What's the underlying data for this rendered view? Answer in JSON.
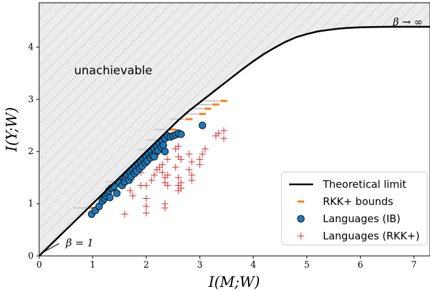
{
  "chart_data": {
    "type": "scatter",
    "xlabel": "I(M;W)",
    "ylabel": "I(Y;W)",
    "xlim": [
      0,
      7.3
    ],
    "ylim": [
      0,
      4.85
    ],
    "xticks": [
      "0",
      "1",
      "2",
      "3",
      "4",
      "5",
      "6",
      "7"
    ],
    "yticks": [
      "0",
      "1",
      "2",
      "3",
      "4"
    ],
    "grid": false,
    "legend_position": "lower-right",
    "annotations": {
      "region_label": "unachievable",
      "beta_one": "β = 1",
      "beta_inf": "β → ∞"
    },
    "colors": {
      "limit": "#000000",
      "bounds": "#ff7f0e",
      "bounds_gap": "#c8c8c8",
      "ib_fill": "#1f77b4",
      "rkk": "#d62728",
      "unachievable_fill": "#ececec",
      "hatch": "#bbbbbb"
    },
    "series": [
      {
        "name": "Theoretical limit",
        "kind": "line",
        "x": [
          0,
          0.2,
          0.4,
          0.6,
          0.8,
          1.0,
          1.2,
          1.4,
          1.6,
          1.8,
          2.0,
          2.2,
          2.4,
          2.6,
          2.8,
          3.0,
          3.2,
          3.4,
          3.6,
          3.8,
          4.0,
          4.2,
          4.4,
          4.6,
          4.8,
          5.0,
          5.2,
          5.4,
          5.6,
          5.8,
          6.0,
          6.2,
          6.4,
          6.6,
          6.8,
          7.0,
          7.3
        ],
        "y": [
          0,
          0.2,
          0.4,
          0.6,
          0.8,
          1.0,
          1.2,
          1.4,
          1.6,
          1.8,
          2.0,
          2.2,
          2.4,
          2.6,
          2.78,
          2.94,
          3.1,
          3.26,
          3.42,
          3.58,
          3.73,
          3.87,
          3.99,
          4.1,
          4.19,
          4.25,
          4.3,
          4.33,
          4.355,
          4.37,
          4.38,
          4.385,
          4.388,
          4.39,
          4.39,
          4.39,
          4.39
        ]
      },
      {
        "name": "RKK+ bounds",
        "kind": "dash",
        "x": [
          1.0,
          1.6,
          2.2,
          2.35,
          2.5,
          2.8,
          3.05,
          3.15,
          3.3,
          3.45
        ],
        "y": [
          0.92,
          1.42,
          2.04,
          2.22,
          2.42,
          2.62,
          2.72,
          2.82,
          2.9,
          2.97
        ]
      },
      {
        "name": "Languages (IB)",
        "kind": "circle",
        "x": [
          0.98,
          1.05,
          1.12,
          1.18,
          1.22,
          1.25,
          1.28,
          1.3,
          1.32,
          1.35,
          1.4,
          1.45,
          1.5,
          1.55,
          1.58,
          1.6,
          1.62,
          1.65,
          1.68,
          1.7,
          1.72,
          1.75,
          1.78,
          1.8,
          1.82,
          1.85,
          1.88,
          1.9,
          1.92,
          1.95,
          1.98,
          2.0,
          2.02,
          2.05,
          2.08,
          2.1,
          2.12,
          2.15,
          2.18,
          2.2,
          2.22,
          2.25,
          2.28,
          2.3,
          2.32,
          2.35,
          2.4,
          2.45,
          2.5,
          2.55,
          2.6,
          2.65,
          3.05,
          2.15,
          2.35
        ],
        "y": [
          0.8,
          0.87,
          0.95,
          1.05,
          1.1,
          1.15,
          1.2,
          1.25,
          1.12,
          1.3,
          1.33,
          1.2,
          1.4,
          1.35,
          1.48,
          1.42,
          1.5,
          1.55,
          1.45,
          1.6,
          1.52,
          1.65,
          1.58,
          1.7,
          1.62,
          1.75,
          1.68,
          1.8,
          1.72,
          1.85,
          1.78,
          1.9,
          1.82,
          1.95,
          1.88,
          2.0,
          1.92,
          2.05,
          1.98,
          2.1,
          2.02,
          2.15,
          2.08,
          2.2,
          2.12,
          2.25,
          2.3,
          2.28,
          2.3,
          2.32,
          2.35,
          2.33,
          2.5,
          1.9,
          2.0
        ]
      },
      {
        "name": "Languages (RKK+)",
        "kind": "plus",
        "x": [
          1.6,
          1.6,
          1.7,
          1.75,
          1.9,
          1.9,
          2.0,
          2.0,
          2.1,
          2.15,
          2.2,
          2.25,
          2.3,
          2.3,
          2.35,
          2.35,
          2.4,
          2.4,
          2.4,
          2.55,
          2.55,
          2.6,
          2.6,
          2.6,
          2.65,
          2.65,
          2.65,
          2.8,
          2.8,
          2.85,
          2.85,
          2.85,
          3.0,
          3.0,
          3.05,
          3.1,
          3.3,
          3.35,
          3.45,
          3.45,
          2.0,
          2.0,
          2.35,
          2.35,
          2.6,
          2.6
        ],
        "y": [
          0.8,
          1.45,
          1.25,
          1.15,
          1.6,
          1.35,
          1.1,
          1.35,
          1.45,
          1.55,
          1.65,
          1.7,
          1.75,
          1.6,
          1.5,
          1.4,
          1.85,
          1.55,
          1.35,
          2.05,
          1.7,
          2.1,
          1.9,
          1.5,
          1.85,
          1.4,
          1.3,
          1.95,
          1.65,
          1.8,
          1.55,
          1.45,
          1.85,
          1.75,
          1.95,
          2.05,
          2.3,
          2.35,
          2.4,
          2.25,
          0.82,
          0.95,
          1.0,
          0.92,
          1.35,
          1.25
        ]
      }
    ]
  }
}
